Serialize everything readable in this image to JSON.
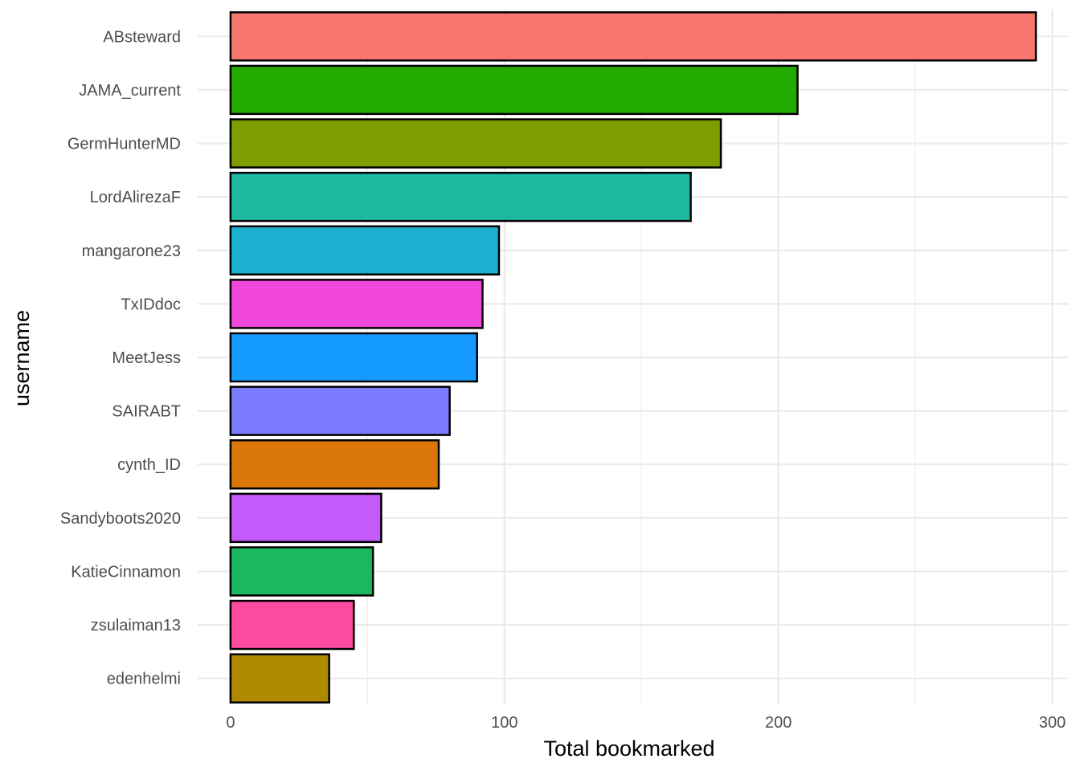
{
  "chart_data": {
    "type": "bar",
    "orientation": "horizontal",
    "xlabel": "Total bookmarked",
    "ylabel": "username",
    "xlim": [
      -12,
      306
    ],
    "x_ticks": [
      0,
      100,
      200,
      300
    ],
    "x_minor_ticks": [
      50,
      150,
      250
    ],
    "grid": true,
    "legend": "none",
    "categories": [
      "ABsteward",
      "JAMA_current",
      "GermHunterMD",
      "LordAlirezaF",
      "mangarone23",
      "TxIDdoc",
      "MeetJess",
      "SAIRABT",
      "cynth_ID",
      "Sandyboots2020",
      "KatieCinnamon",
      "zsulaiman13",
      "edenhelmi"
    ],
    "values": [
      294,
      207,
      179,
      168,
      98,
      92,
      90,
      80,
      76,
      55,
      52,
      45,
      36
    ],
    "colors": [
      "#F8766D",
      "#22AA00",
      "#7D9D00",
      "#1DB8A0",
      "#1BAFD0",
      "#F147DB",
      "#159BFF",
      "#7B7CFF",
      "#DB7708",
      "#C35AF9",
      "#1AB85F",
      "#FD4B9F",
      "#AE8A00"
    ],
    "bar_outline": "#000000"
  }
}
